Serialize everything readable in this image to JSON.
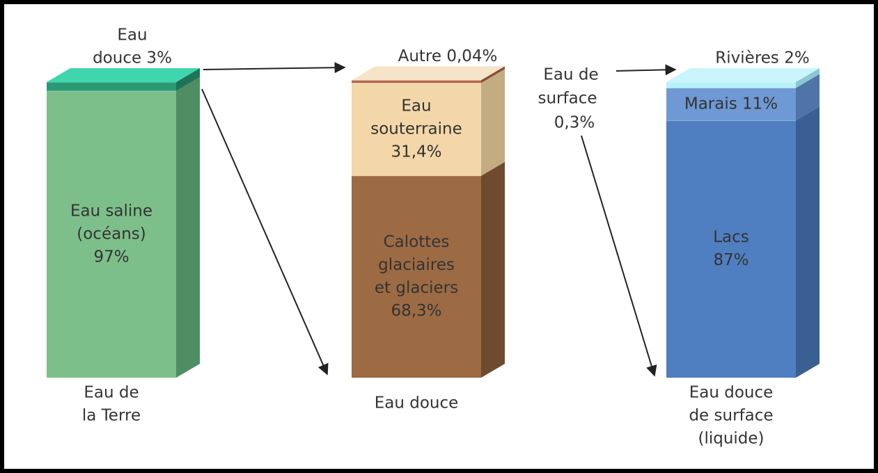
{
  "bars": [
    {
      "name": [
        "Eau de",
        "la Terre"
      ],
      "top": "#3fd6ae",
      "segments": [
        {
          "label": [
            "Eau saline",
            "(océans)",
            "97%"
          ],
          "value": 97,
          "color": "#7dbf8a",
          "side": "#4f8d63"
        },
        {
          "label": [
            "Eau",
            "douce 3%"
          ],
          "value": 3,
          "color": "#2a9a76",
          "side": "#1f7358"
        }
      ]
    },
    {
      "name": [
        "Eau douce"
      ],
      "top": "#f6e4c8",
      "segments": [
        {
          "label": [
            "Calottes",
            "glaciaires",
            "et glaciers",
            "68,3%"
          ],
          "value": 68.3,
          "color": "#9c6b44",
          "side": "#6e4b2e"
        },
        {
          "label": [
            "Eau",
            "souterraine",
            "31,4%"
          ],
          "value": 31.4,
          "color": "#f3d7a8",
          "side": "#c4ac82"
        },
        {
          "label": [
            "Autre 0,04%"
          ],
          "value": 0.04,
          "color": "#b5654e",
          "side": "#8a4a38"
        }
      ]
    },
    {
      "name": [
        "Eau douce",
        "de surface",
        "(liquide)"
      ],
      "top": "#c9f5fb",
      "segments": [
        {
          "label": [
            "Lacs",
            "87%"
          ],
          "value": 87,
          "color": "#4f7fc1",
          "side": "#3a5f93"
        },
        {
          "label": [
            "Marais 11%"
          ],
          "value": 11,
          "color": "#6f99d4",
          "side": "#4f74a8"
        },
        {
          "label": [
            "Rivières 2%"
          ],
          "value": 2,
          "color": "#b8f0f8",
          "side": "#8cc6d0"
        }
      ]
    }
  ],
  "annotations": [
    {
      "text": [
        "Eau de",
        "surface",
        "0,3%"
      ]
    }
  ]
}
